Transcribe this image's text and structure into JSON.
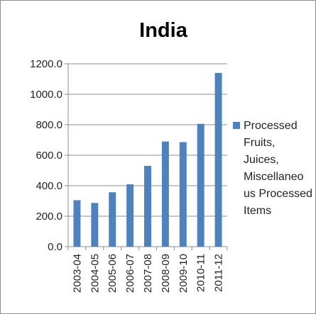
{
  "chart_data": {
    "type": "bar",
    "title": "India",
    "categories": [
      "2003-04",
      "2004-05",
      "2005-06",
      "2006-07",
      "2007-08",
      "2008-09",
      "2009-10",
      "2010-11",
      "2011-12"
    ],
    "series": [
      {
        "name": "Processed Fruits, Juices, Miscellaneous Processed Items",
        "values": [
          305,
          287,
          357,
          409,
          530,
          690,
          686,
          806,
          1140
        ]
      }
    ],
    "ylim": [
      0,
      1200
    ],
    "yticks": [
      "0.0",
      "200.0",
      "400.0",
      "600.0",
      "800.0",
      "1000.0",
      "1200.0"
    ],
    "grid": true,
    "legend_position": "right",
    "color": "#4f81bd"
  },
  "legend_lines": [
    "Processed",
    "Fruits,",
    "Juices,",
    "Miscellaneo",
    "us Processed",
    "Items"
  ]
}
